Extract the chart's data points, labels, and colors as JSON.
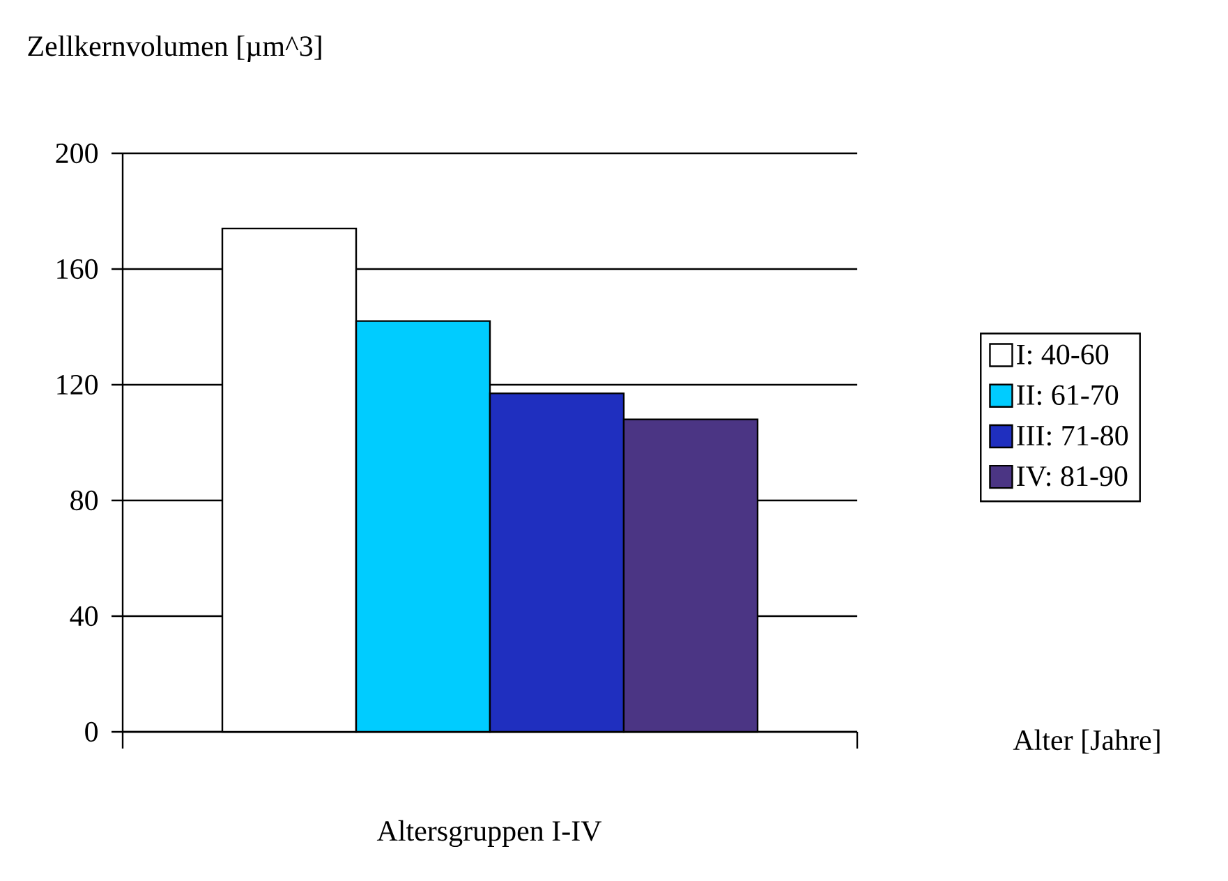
{
  "chart_data": {
    "type": "bar",
    "ylabel": "Zellkernvolumen [µm^3]",
    "xlabel": "Altersgruppen I-IV",
    "categories": [
      null
    ],
    "series": [
      {
        "name": "I: 40-60",
        "color": "#ffffff",
        "values": [
          174
        ]
      },
      {
        "name": "II: 61-70",
        "color": "#00ccff",
        "values": [
          142
        ]
      },
      {
        "name": "III: 71-80",
        "color": "#1f2fbf",
        "values": [
          117
        ]
      },
      {
        "name": "IV: 81-90",
        "color": "#4b3584",
        "values": [
          108
        ]
      }
    ],
    "ylim": [
      0,
      200
    ],
    "yticks": [
      0,
      40,
      80,
      120,
      160,
      200
    ],
    "grid": "y",
    "legend": "right",
    "annotations": [
      "Alter [Jahre]"
    ]
  }
}
